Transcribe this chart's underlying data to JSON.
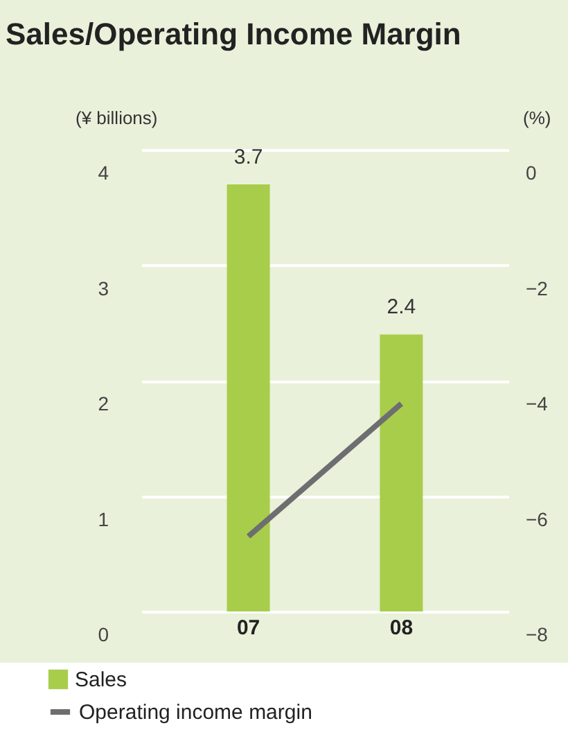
{
  "chart_data": {
    "type": "bar",
    "title": "Sales/Operating Income Margin",
    "ylabel": "(¥ billions)",
    "y2label": "(%)",
    "categories": [
      "07",
      "08"
    ],
    "series": [
      {
        "name": "Sales",
        "color": "#a8cd4b",
        "values": [
          3.7,
          2.4
        ],
        "value_labels": [
          "3.7",
          "2.4"
        ]
      },
      {
        "name": "Operating income margin",
        "type": "line",
        "axis": "y2",
        "color": "#6d6e70",
        "values": [
          -6.7,
          -4.4
        ]
      }
    ],
    "ylim": [
      0,
      4
    ],
    "yticks": [
      0,
      1,
      2,
      3,
      4
    ],
    "y2lim": [
      -8,
      0
    ],
    "y2ticks": [
      {
        "value": -8,
        "label": "−8"
      },
      {
        "value": -6,
        "label": "−6"
      },
      {
        "value": -4,
        "label": "−4"
      },
      {
        "value": -2,
        "label": "−2"
      },
      0
    ],
    "grid": "y",
    "legend": "bottom left",
    "marker": "none",
    "line_style": "solid"
  }
}
